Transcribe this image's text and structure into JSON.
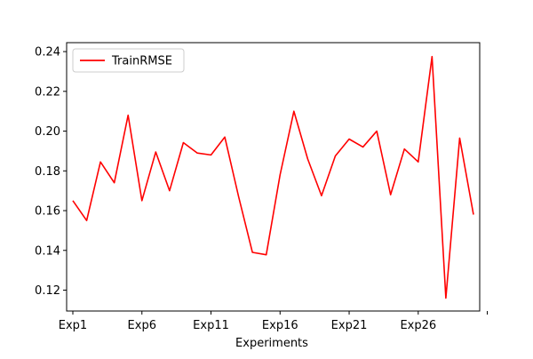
{
  "chart_data": {
    "type": "line",
    "title": "",
    "xlabel": "Experiments",
    "ylabel": "",
    "x_tick_labels": [
      "Exp1",
      "Exp6",
      "Exp11",
      "Exp16",
      "Exp21",
      "Exp26",
      ""
    ],
    "y_ticks": [
      "0.12",
      "0.14",
      "0.16",
      "0.18",
      "0.20",
      "0.22",
      "0.24"
    ],
    "ylim": [
      0.1095,
      0.2445
    ],
    "grid": false,
    "legend_position": "upper left",
    "series": [
      {
        "name": "TrainRMSE",
        "color": "#ff0000",
        "x": [
          "Exp1",
          "Exp2",
          "Exp3",
          "Exp4",
          "Exp5",
          "Exp6",
          "Exp7",
          "Exp8",
          "Exp9",
          "Exp10",
          "Exp11",
          "Exp12",
          "Exp13",
          "Exp14",
          "Exp15",
          "Exp16",
          "Exp17",
          "Exp18",
          "Exp19",
          "Exp20",
          "Exp21",
          "Exp22",
          "Exp23",
          "Exp24",
          "Exp25",
          "Exp26",
          "Exp27",
          "Exp28",
          "Exp29",
          "Exp30"
        ],
        "values": [
          0.165,
          0.155,
          0.1845,
          0.174,
          0.208,
          0.165,
          0.1895,
          0.17,
          0.1942,
          0.189,
          0.188,
          0.197,
          0.167,
          0.139,
          0.1378,
          0.178,
          0.21,
          0.186,
          0.1675,
          0.1875,
          0.196,
          0.192,
          0.2,
          0.168,
          0.191,
          0.1845,
          0.2375,
          0.116,
          0.1965,
          0.158
        ]
      }
    ]
  }
}
